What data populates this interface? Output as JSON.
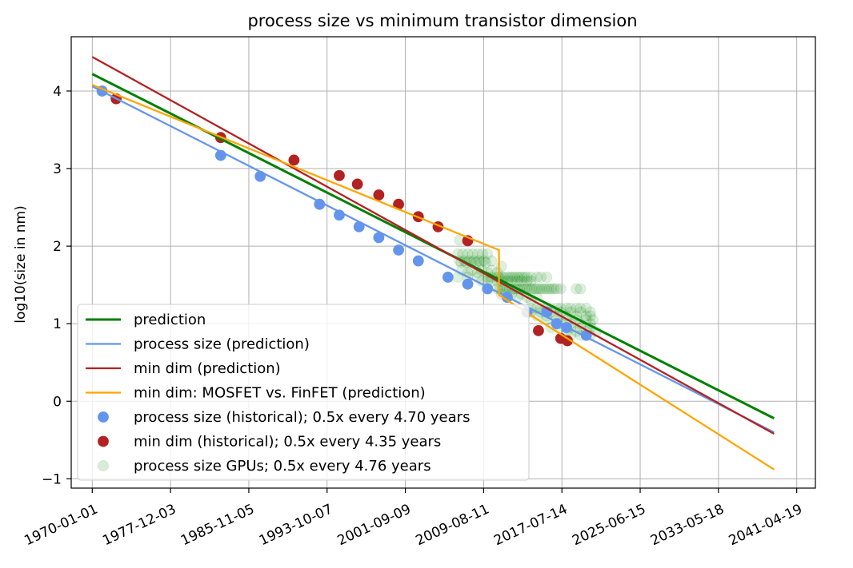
{
  "chart_data": {
    "type": "line",
    "title": "process size vs minimum transistor dimension",
    "xlabel": "",
    "ylabel": "log10(size in nm)",
    "x_scale": "date",
    "xlim": [
      "1967-11-15",
      "2043-03-10"
    ],
    "ylim": [
      -1.12,
      4.7
    ],
    "grid": true,
    "legend_position": "lower-left",
    "x_ticks": [
      "1970-01-01",
      "1977-12-03",
      "1985-11-05",
      "1993-10-07",
      "2001-09-09",
      "2009-08-11",
      "2017-07-14",
      "2025-06-15",
      "2033-05-18",
      "2041-04-19"
    ],
    "y_ticks": [
      -1,
      0,
      1,
      2,
      3,
      4
    ],
    "y_tick_labels": [
      "−1",
      "0",
      "1",
      "2",
      "3",
      "4"
    ],
    "series": [
      {
        "name": "prediction",
        "kind": "line",
        "color": "#008000",
        "points": [
          [
            "1970-01-01",
            4.22
          ],
          [
            "2039-01-01",
            -0.22
          ]
        ]
      },
      {
        "name": "process size (prediction)",
        "kind": "line",
        "color": "#6495ED",
        "points": [
          [
            "1970-01-01",
            4.06
          ],
          [
            "2039-01-01",
            -0.4
          ]
        ]
      },
      {
        "name": "min dim (prediction)",
        "kind": "line",
        "color": "#B22222",
        "points": [
          [
            "1970-01-01",
            4.44
          ],
          [
            "2039-01-01",
            -0.42
          ]
        ]
      },
      {
        "name": "min dim: MOSFET vs. FinFET (prediction)",
        "kind": "line",
        "color": "#FFA500",
        "points": [
          [
            "1970-01-01",
            4.08
          ],
          [
            "2011-03-01",
            1.95
          ],
          [
            "2011-03-01",
            1.37
          ],
          [
            "2039-01-01",
            -0.88
          ]
        ]
      },
      {
        "name": "process size (historical); 0.5x every 4.70 years",
        "kind": "scatter",
        "color": "#6495ED",
        "points": [
          [
            "1971-01-01",
            4.0
          ],
          [
            "1983-01-01",
            3.17
          ],
          [
            "1987-01-01",
            2.9
          ],
          [
            "1993-01-01",
            2.54
          ],
          [
            "1995-01-01",
            2.4
          ],
          [
            "1997-01-01",
            2.25
          ],
          [
            "1999-01-01",
            2.11
          ],
          [
            "2001-01-01",
            1.95
          ],
          [
            "2003-01-01",
            1.81
          ],
          [
            "2006-01-01",
            1.6
          ],
          [
            "2008-01-01",
            1.51
          ],
          [
            "2010-01-01",
            1.45
          ],
          [
            "2012-01-01",
            1.34
          ],
          [
            "2014-01-01",
            1.15
          ],
          [
            "2016-01-01",
            1.15
          ],
          [
            "2017-01-01",
            1.0
          ],
          [
            "2018-01-01",
            0.95
          ],
          [
            "2020-01-01",
            0.85
          ]
        ]
      },
      {
        "name": "min dim (historical); 0.5x every 4.35 years",
        "kind": "scatter",
        "color": "#B22222",
        "points": [
          [
            "1972-06-01",
            3.9
          ],
          [
            "1983-01-01",
            3.4
          ],
          [
            "1990-06-01",
            3.11
          ],
          [
            "1995-01-01",
            2.91
          ],
          [
            "1996-11-01",
            2.8
          ],
          [
            "1999-01-01",
            2.66
          ],
          [
            "2001-01-01",
            2.54
          ],
          [
            "2003-01-01",
            2.38
          ],
          [
            "2005-01-01",
            2.25
          ],
          [
            "2008-01-01",
            2.07
          ],
          [
            "2015-03-01",
            0.91
          ],
          [
            "2017-06-01",
            0.81
          ],
          [
            "2018-02-01",
            0.78
          ]
        ]
      },
      {
        "name": "process size GPUs; 0.5x every 4.76 years",
        "kind": "scatter",
        "color": "#008000",
        "opacity": 0.13,
        "points": [
          [
            "2007-01-01",
            1.9
          ],
          [
            "2007-03-01",
            1.81
          ],
          [
            "2007-05-01",
            1.79
          ],
          [
            "2007-07-01",
            1.9
          ],
          [
            "2007-09-01",
            1.81
          ],
          [
            "2007-11-01",
            1.79
          ],
          [
            "2008-01-01",
            1.9
          ],
          [
            "2008-03-01",
            1.81
          ],
          [
            "2008-05-01",
            1.79
          ],
          [
            "2008-07-01",
            1.9
          ],
          [
            "2008-09-01",
            1.81
          ],
          [
            "2008-11-01",
            1.79
          ],
          [
            "2009-01-01",
            1.9
          ],
          [
            "2009-03-01",
            1.81
          ],
          [
            "2009-05-01",
            1.79
          ],
          [
            "2009-07-01",
            1.9
          ],
          [
            "2009-09-01",
            1.81
          ],
          [
            "2009-11-01",
            1.79
          ],
          [
            "2010-01-01",
            1.9
          ],
          [
            "2010-06-01",
            1.81
          ],
          [
            "2007-06-01",
            1.69
          ],
          [
            "2008-01-01",
            1.66
          ],
          [
            "2008-06-01",
            1.69
          ],
          [
            "2009-01-01",
            1.66
          ],
          [
            "2009-06-01",
            1.69
          ],
          [
            "2010-01-01",
            1.66
          ],
          [
            "2010-06-01",
            1.69
          ],
          [
            "2011-01-01",
            1.66
          ],
          [
            "2007-01-01",
            1.6
          ],
          [
            "2008-01-01",
            1.6
          ],
          [
            "2009-01-01",
            1.6
          ],
          [
            "2010-01-01",
            1.6
          ],
          [
            "2010-06-01",
            1.6
          ],
          [
            "2011-01-01",
            1.6
          ],
          [
            "2011-03-01",
            1.6
          ],
          [
            "2011-06-01",
            1.6
          ],
          [
            "2011-09-01",
            1.6
          ],
          [
            "2012-01-01",
            1.6
          ],
          [
            "2012-04-01",
            1.6
          ],
          [
            "2012-07-01",
            1.6
          ],
          [
            "2012-10-01",
            1.6
          ],
          [
            "2013-01-01",
            1.6
          ],
          [
            "2013-04-01",
            1.6
          ],
          [
            "2013-07-01",
            1.6
          ],
          [
            "2013-10-01",
            1.6
          ],
          [
            "2014-01-01",
            1.6
          ],
          [
            "2014-06-01",
            1.6
          ],
          [
            "2015-01-01",
            1.6
          ],
          [
            "2015-06-01",
            1.6
          ],
          [
            "2016-01-01",
            1.6
          ],
          [
            "2007-03-01",
            2.08
          ],
          [
            "2011-06-01",
            1.74
          ],
          [
            "2009-06-01",
            1.55
          ],
          [
            "2010-01-01",
            1.55
          ],
          [
            "2010-06-01",
            1.55
          ],
          [
            "2011-01-01",
            1.55
          ],
          [
            "2011-06-01",
            1.55
          ],
          [
            "2012-01-01",
            1.55
          ],
          [
            "2012-06-01",
            1.55
          ],
          [
            "2013-01-01",
            1.55
          ],
          [
            "2013-06-01",
            1.55
          ],
          [
            "2014-01-01",
            1.55
          ],
          [
            "2014-06-01",
            1.55
          ],
          [
            "2011-01-01",
            1.45
          ],
          [
            "2011-04-01",
            1.45
          ],
          [
            "2011-07-01",
            1.45
          ],
          [
            "2011-10-01",
            1.45
          ],
          [
            "2012-01-01",
            1.45
          ],
          [
            "2012-04-01",
            1.45
          ],
          [
            "2012-07-01",
            1.45
          ],
          [
            "2012-10-01",
            1.45
          ],
          [
            "2013-01-01",
            1.45
          ],
          [
            "2013-04-01",
            1.45
          ],
          [
            "2013-07-01",
            1.45
          ],
          [
            "2013-10-01",
            1.45
          ],
          [
            "2014-01-01",
            1.45
          ],
          [
            "2014-04-01",
            1.45
          ],
          [
            "2014-07-01",
            1.45
          ],
          [
            "2014-10-01",
            1.45
          ],
          [
            "2015-01-01",
            1.45
          ],
          [
            "2015-04-01",
            1.45
          ],
          [
            "2015-07-01",
            1.45
          ],
          [
            "2015-10-01",
            1.45
          ],
          [
            "2016-01-01",
            1.45
          ],
          [
            "2016-04-01",
            1.45
          ],
          [
            "2016-07-01",
            1.45
          ],
          [
            "2016-10-01",
            1.45
          ],
          [
            "2017-01-01",
            1.45
          ],
          [
            "2017-06-01",
            1.45
          ],
          [
            "2019-01-01",
            1.45
          ],
          [
            "2019-06-01",
            1.45
          ],
          [
            "2011-06-01",
            1.38
          ],
          [
            "2012-01-01",
            1.34
          ],
          [
            "2012-06-01",
            1.38
          ],
          [
            "2013-01-01",
            1.34
          ],
          [
            "2013-06-01",
            1.38
          ],
          [
            "2014-01-01",
            1.34
          ],
          [
            "2014-06-01",
            1.3
          ],
          [
            "2015-01-01",
            1.34
          ],
          [
            "2014-06-01",
            1.2
          ],
          [
            "2015-01-01",
            1.2
          ],
          [
            "2015-06-01",
            1.2
          ],
          [
            "2016-01-01",
            1.2
          ],
          [
            "2016-06-01",
            1.2
          ],
          [
            "2017-01-01",
            1.2
          ],
          [
            "2017-06-01",
            1.2
          ],
          [
            "2018-01-01",
            1.2
          ],
          [
            "2018-06-01",
            1.2
          ],
          [
            "2019-01-01",
            1.2
          ],
          [
            "2019-06-01",
            1.2
          ],
          [
            "2020-01-01",
            1.2
          ],
          [
            "2014-06-01",
            1.15
          ],
          [
            "2015-06-01",
            1.15
          ],
          [
            "2016-06-01",
            1.15
          ],
          [
            "2017-06-01",
            1.15
          ],
          [
            "2018-06-01",
            1.15
          ],
          [
            "2019-06-01",
            1.15
          ],
          [
            "2020-06-01",
            1.15
          ],
          [
            "2015-01-01",
            1.1
          ],
          [
            "2016-01-01",
            1.1
          ],
          [
            "2017-01-01",
            1.1
          ],
          [
            "2018-01-01",
            1.1
          ],
          [
            "2019-01-01",
            1.1
          ],
          [
            "2020-01-01",
            1.1
          ],
          [
            "2020-06-01",
            1.1
          ],
          [
            "2016-01-01",
            1.05
          ],
          [
            "2017-01-01",
            1.05
          ],
          [
            "2018-01-01",
            1.05
          ],
          [
            "2019-01-01",
            1.05
          ],
          [
            "2020-01-01",
            1.05
          ],
          [
            "2020-09-01",
            1.05
          ],
          [
            "2017-06-01",
            1.0
          ],
          [
            "2018-06-01",
            1.0
          ],
          [
            "2019-06-01",
            1.0
          ],
          [
            "2020-06-01",
            1.0
          ],
          [
            "2016-06-01",
            0.95
          ],
          [
            "2017-06-01",
            0.95
          ],
          [
            "2018-06-01",
            0.95
          ],
          [
            "2019-06-01",
            0.95
          ],
          [
            "2020-06-01",
            0.95
          ],
          [
            "2018-01-01",
            0.9
          ],
          [
            "2019-01-01",
            0.9
          ],
          [
            "2020-01-01",
            0.9
          ],
          [
            "2018-06-01",
            0.85
          ],
          [
            "2019-06-01",
            0.85
          ],
          [
            "2020-06-01",
            0.85
          ],
          [
            "2021-01-01",
            0.9
          ]
        ]
      }
    ]
  }
}
